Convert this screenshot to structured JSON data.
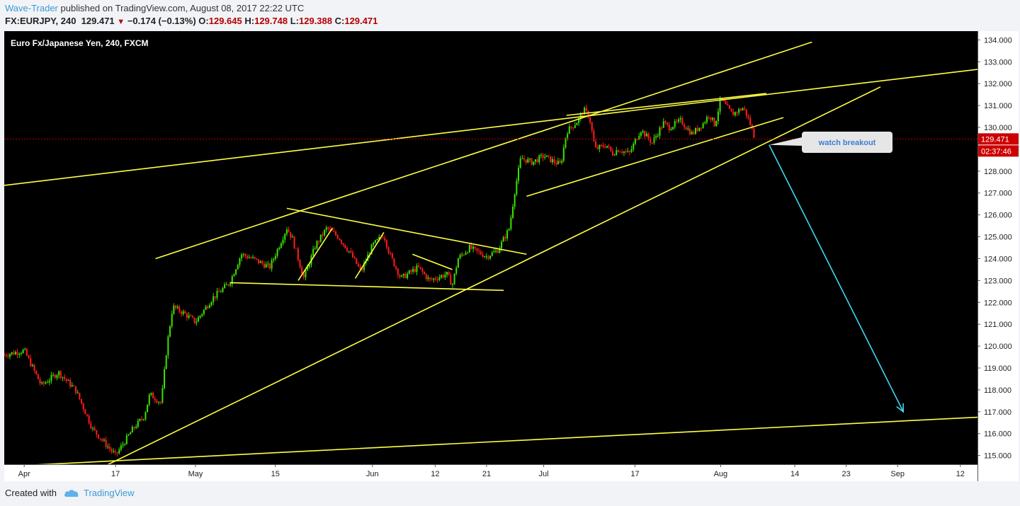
{
  "header": {
    "author": "Wave-Trader",
    "published_text": " published on TradingView.com, August 08, 2017 22:22 UTC",
    "symbol": "FX:EURJPY, 240",
    "last": "129.471",
    "change": "−0.174 (−0.13%)",
    "open_label": "O:",
    "open": "129.645",
    "high_label": "H:",
    "high": "129.748",
    "low_label": "L:",
    "low": "129.388",
    "close_label": "C:",
    "close": "129.471"
  },
  "footer": {
    "created_with": "Created with",
    "brand": "TradingView"
  },
  "colors": {
    "background": "#000000",
    "up": "#3adf00",
    "down": "#ff1a1a",
    "trendline": "#ffff44",
    "projection": "#3fd8f2",
    "axis_text": "#222222",
    "price_label": "#cc0000"
  },
  "chart_data": {
    "type": "candlestick",
    "title": "Euro Fx/Japanese Yen, 240, FXCM",
    "ylim": [
      114.6,
      134.4
    ],
    "y_ticks": [
      "115.000",
      "116.000",
      "117.000",
      "118.000",
      "119.000",
      "120.000",
      "121.000",
      "122.000",
      "123.000",
      "124.000",
      "125.000",
      "126.000",
      "127.000",
      "128.000",
      "129.000",
      "130.000",
      "131.000",
      "132.000",
      "133.000",
      "134.000"
    ],
    "x_ticks": [
      {
        "day": 0,
        "label": "Apr"
      },
      {
        "day": 16,
        "label": "17"
      },
      {
        "day": 30,
        "label": "May"
      },
      {
        "day": 44,
        "label": "15"
      },
      {
        "day": 61,
        "label": "Jun"
      },
      {
        "day": 72,
        "label": "12"
      },
      {
        "day": 81,
        "label": "21"
      },
      {
        "day": 91,
        "label": "Jul"
      },
      {
        "day": 107,
        "label": "17"
      },
      {
        "day": 122,
        "label": "Aug"
      },
      {
        "day": 135,
        "label": "14"
      },
      {
        "day": 144,
        "label": "23"
      },
      {
        "day": 153,
        "label": "Sep"
      },
      {
        "day": 164,
        "label": "12"
      }
    ],
    "x_range_days": [
      -3.5,
      167
    ],
    "last_price": "129.471",
    "countdown": "02:37:46",
    "price_path": [
      [
        -3.5,
        119.6
      ],
      [
        0,
        119.8
      ],
      [
        3,
        118.2
      ],
      [
        6,
        118.8
      ],
      [
        9,
        118.0
      ],
      [
        12,
        116.2
      ],
      [
        16,
        115.0
      ],
      [
        19,
        116.2
      ],
      [
        21,
        116.8
      ],
      [
        22,
        117.8
      ],
      [
        24,
        117.4
      ],
      [
        25,
        120.0
      ],
      [
        26,
        121.8
      ],
      [
        28,
        121.5
      ],
      [
        30,
        121.1
      ],
      [
        33,
        122.2
      ],
      [
        36,
        122.9
      ],
      [
        38,
        124.2
      ],
      [
        40,
        124.0
      ],
      [
        43,
        123.6
      ],
      [
        46,
        125.4
      ],
      [
        47,
        124.9
      ],
      [
        49,
        123.1
      ],
      [
        51,
        124.6
      ],
      [
        53,
        125.4
      ],
      [
        55,
        125.0
      ],
      [
        57,
        124.3
      ],
      [
        59,
        123.4
      ],
      [
        61,
        124.6
      ],
      [
        63,
        125.1
      ],
      [
        64,
        124.2
      ],
      [
        66,
        123.1
      ],
      [
        69,
        123.6
      ],
      [
        71,
        123.0
      ],
      [
        74,
        123.3
      ],
      [
        75,
        122.8
      ],
      [
        76,
        124.0
      ],
      [
        78,
        124.5
      ],
      [
        81,
        124.1
      ],
      [
        83,
        124.4
      ],
      [
        85,
        125.4
      ],
      [
        86,
        127.2
      ],
      [
        87,
        128.6
      ],
      [
        89,
        128.4
      ],
      [
        91,
        128.7
      ],
      [
        93,
        128.4
      ],
      [
        94,
        128.3
      ],
      [
        95,
        129.8
      ],
      [
        97,
        130.3
      ],
      [
        98,
        130.8
      ],
      [
        99,
        130.5
      ],
      [
        100,
        129.0
      ],
      [
        102,
        129.2
      ],
      [
        103,
        128.8
      ],
      [
        104,
        129.0
      ],
      [
        106,
        128.8
      ],
      [
        108,
        129.9
      ],
      [
        110,
        129.3
      ],
      [
        112,
        130.2
      ],
      [
        113,
        130.0
      ],
      [
        115,
        130.3
      ],
      [
        117,
        129.7
      ],
      [
        119,
        130.2
      ],
      [
        120,
        130.6
      ],
      [
        121,
        130.1
      ],
      [
        122,
        131.3
      ],
      [
        124,
        130.6
      ],
      [
        126,
        130.9
      ],
      [
        127,
        130.3
      ],
      [
        128,
        129.5
      ]
    ],
    "trendlines": [
      {
        "name": "long-ascending-upper",
        "p1": [
          -3.5,
          127.35
        ],
        "p2": [
          167,
          132.65
        ],
        "color": "#ffff44"
      },
      {
        "name": "channel-upper",
        "p1": [
          23,
          124.0
        ],
        "p2": [
          138,
          133.9
        ],
        "color": "#ffff44"
      },
      {
        "name": "channel-lower",
        "p1": [
          14,
          114.5
        ],
        "p2": [
          150,
          131.85
        ],
        "color": "#ffff44"
      },
      {
        "name": "bottom-baseline",
        "p1": [
          -3.5,
          114.5
        ],
        "p2": [
          167,
          116.75
        ],
        "color": "#ffff44"
      },
      {
        "name": "triangle-top",
        "p1": [
          46,
          126.3
        ],
        "p2": [
          88,
          124.2
        ],
        "color": "#ffff44"
      },
      {
        "name": "triangle-bottom",
        "p1": [
          36,
          122.9
        ],
        "p2": [
          84,
          122.55
        ],
        "color": "#ffff44"
      },
      {
        "name": "flag-bottom",
        "p1": [
          95,
          130.55
        ],
        "p2": [
          130,
          131.55
        ],
        "color": "#ffff44"
      },
      {
        "name": "rising-channel-bottom",
        "p1": [
          88,
          126.85
        ],
        "p2": [
          133,
          130.45
        ],
        "color": "#ffff44"
      },
      {
        "name": "small-rise-1",
        "p1": [
          48,
          123.0
        ],
        "p2": [
          54,
          125.4
        ],
        "color": "#ffff44"
      },
      {
        "name": "small-rise-2",
        "p1": [
          58,
          123.1
        ],
        "p2": [
          63,
          125.2
        ],
        "color": "#ffff44"
      },
      {
        "name": "small-down",
        "p1": [
          68,
          124.2
        ],
        "p2": [
          75,
          123.5
        ],
        "color": "#ffff44"
      }
    ],
    "projection": {
      "p1": [
        130.5,
        129.2
      ],
      "p2": [
        154,
        117.0
      ],
      "color": "#3fd8f2"
    },
    "annotation": {
      "text": "watch breakout",
      "anchor": [
        130.5,
        129.2
      ]
    }
  }
}
